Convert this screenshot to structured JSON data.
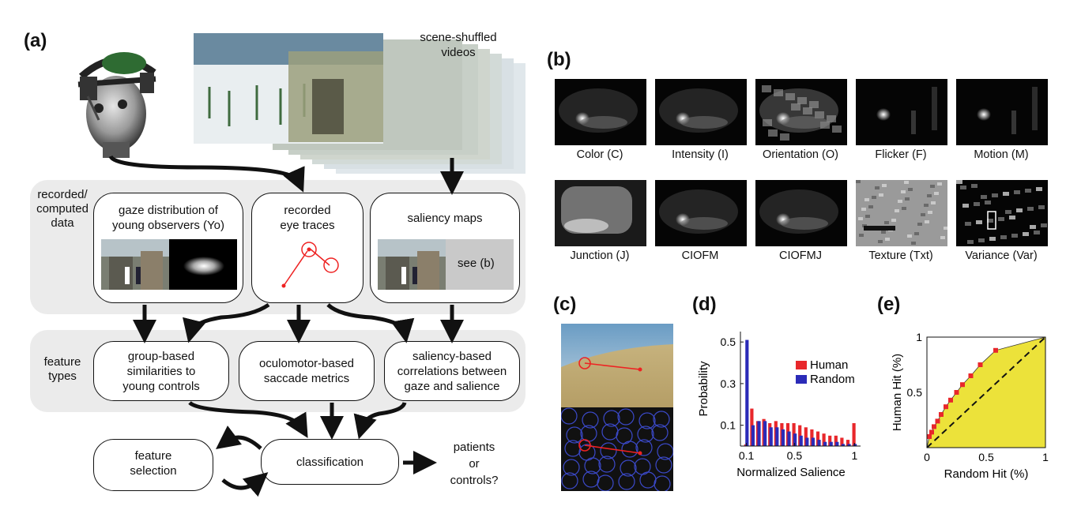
{
  "panel_a": {
    "label": "(a)",
    "videos_caption": "scene-shuffled\nvideos",
    "band_recorded_label": "recorded/\ncomputed\ndata",
    "band_feature_label": "feature\ntypes",
    "box_gaze": "gaze distribution of\nyoung observers (Yo)",
    "box_traces": "recorded\neye traces",
    "box_saliency": "saliency maps",
    "saliency_see": "see (b)",
    "box_group": "group-based\nsimilarities to\nyoung controls",
    "box_oculomotor": "oculomotor-based\nsaccade metrics",
    "box_saliency_corr": "saliency-based\ncorrelations between\ngaze and salience",
    "box_feature_selection": "feature\nselection",
    "box_classification": "classification",
    "outcome": "patients\nor\ncontrols?"
  },
  "panel_b": {
    "label": "(b)",
    "maps": [
      {
        "name": "Color (C)",
        "style": "soft"
      },
      {
        "name": "Intensity (I)",
        "style": "soft"
      },
      {
        "name": "Orientation (O)",
        "style": "texture"
      },
      {
        "name": "Flicker (F)",
        "style": "sparse"
      },
      {
        "name": "Motion (M)",
        "style": "sparse"
      },
      {
        "name": "Junction (J)",
        "style": "blur"
      },
      {
        "name": "CIOFM",
        "style": "soft"
      },
      {
        "name": "CIOFMJ",
        "style": "soft"
      },
      {
        "name": "Texture (Txt)",
        "style": "bright"
      },
      {
        "name": "Variance (Var)",
        "style": "edges"
      }
    ]
  },
  "panel_c": {
    "label": "(c)"
  },
  "panel_d": {
    "label": "(d)",
    "chart_data": {
      "type": "bar",
      "xlabel": "Normalized Salience",
      "ylabel": "Probability",
      "xticks": [
        "0.1",
        "0.5",
        "1"
      ],
      "yticks": [
        "0.1",
        "0.3",
        "0.5"
      ],
      "xlim": [
        0.05,
        1.05
      ],
      "ylim": [
        0,
        0.55
      ],
      "legend_position": "right",
      "bin_centers": [
        0.1,
        0.15,
        0.2,
        0.25,
        0.3,
        0.35,
        0.4,
        0.45,
        0.5,
        0.55,
        0.6,
        0.65,
        0.7,
        0.75,
        0.8,
        0.85,
        0.9,
        0.95,
        1.0
      ],
      "series": [
        {
          "name": "Human",
          "color": "#e8272b",
          "values": [
            0.008,
            0.18,
            0.12,
            0.13,
            0.11,
            0.12,
            0.11,
            0.11,
            0.11,
            0.1,
            0.09,
            0.08,
            0.07,
            0.06,
            0.05,
            0.05,
            0.04,
            0.03,
            0.11
          ]
        },
        {
          "name": "Random",
          "color": "#2b2bb8",
          "values": [
            0.51,
            0.1,
            0.12,
            0.12,
            0.09,
            0.09,
            0.08,
            0.07,
            0.06,
            0.05,
            0.04,
            0.04,
            0.03,
            0.02,
            0.02,
            0.02,
            0.01,
            0.01,
            0.01
          ]
        }
      ]
    }
  },
  "panel_e": {
    "label": "(e)",
    "chart_data": {
      "type": "line",
      "xlabel": "Random Hit (%)",
      "ylabel": "Human Hit (%)",
      "xticks": [
        "0",
        "0.5",
        "1"
      ],
      "yticks": [
        "0.5",
        "1"
      ],
      "xlim": [
        0,
        1
      ],
      "ylim": [
        0,
        1
      ],
      "fill_color": "#ece23a",
      "point_color": "#e8272b",
      "x": [
        0.0,
        0.02,
        0.04,
        0.06,
        0.09,
        0.12,
        0.16,
        0.2,
        0.25,
        0.3,
        0.37,
        0.45,
        0.58,
        1.0
      ],
      "y": [
        0.0,
        0.1,
        0.14,
        0.19,
        0.24,
        0.3,
        0.37,
        0.43,
        0.5,
        0.57,
        0.65,
        0.75,
        0.88,
        1.0
      ]
    }
  }
}
